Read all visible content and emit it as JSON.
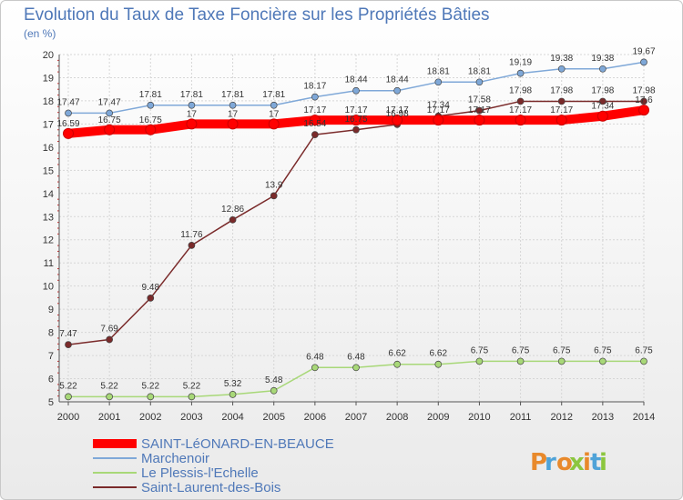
{
  "chart_data": {
    "type": "line",
    "title": "Evolution du Taux de Taxe Foncière sur les Propriétés Bâties",
    "subtitle": "(en %)",
    "xlabel": "",
    "ylabel": "",
    "x": [
      "2000",
      "2001",
      "2002",
      "2003",
      "2004",
      "2005",
      "2006",
      "2007",
      "2008",
      "2009",
      "2010",
      "2011",
      "2012",
      "2013",
      "2014"
    ],
    "ylim": [
      5,
      20
    ],
    "yticks": [
      5,
      6,
      7,
      8,
      9,
      10,
      11,
      12,
      13,
      14,
      15,
      16,
      17,
      18,
      19,
      20
    ],
    "grid": true,
    "legend_position": "bottom-left",
    "series": [
      {
        "name": "SAINT-LéONARD-EN-BEAUCE",
        "color": "#ff0000",
        "values": [
          16.59,
          16.75,
          16.75,
          17,
          17,
          17,
          17.17,
          17.17,
          17.17,
          17.17,
          17.17,
          17.17,
          17.17,
          17.34,
          17.6
        ],
        "labels": [
          "16.59",
          "16.75",
          "16.75",
          "17",
          "17",
          "17",
          "17.17",
          "17.17",
          "17.17",
          "17.17",
          "17.17",
          "17.17",
          "17.17",
          "17.34",
          "17.6"
        ]
      },
      {
        "name": "Marchenoir",
        "color": "#7fa8d8",
        "values": [
          17.47,
          17.47,
          17.81,
          17.81,
          17.81,
          17.81,
          18.17,
          18.44,
          18.44,
          18.81,
          18.81,
          19.19,
          19.38,
          19.38,
          19.67
        ],
        "labels": [
          "17.47",
          "17.47",
          "17.81",
          "17.81",
          "17.81",
          "17.81",
          "18.17",
          "18.44",
          "18.44",
          "18.81",
          "18.81",
          "19.19",
          "19.38",
          "19.38",
          "19.67"
        ]
      },
      {
        "name": "Le Plessis-l'Echelle",
        "color": "#a8d878",
        "values": [
          5.22,
          5.22,
          5.22,
          5.22,
          5.32,
          5.48,
          6.48,
          6.48,
          6.62,
          6.62,
          6.75,
          6.75,
          6.75,
          6.75,
          6.75
        ],
        "labels": [
          "5.22",
          "5.22",
          "5.22",
          "5.22",
          "5.32",
          "5.48",
          "6.48",
          "6.48",
          "6.62",
          "6.62",
          "6.75",
          "6.75",
          "6.75",
          "6.75",
          "6.75"
        ]
      },
      {
        "name": "Saint-Laurent-des-Bois",
        "color": "#7a2a2a",
        "values": [
          7.47,
          7.69,
          9.48,
          11.76,
          12.86,
          13.9,
          16.54,
          16.75,
          16.98,
          17.34,
          17.58,
          17.98,
          17.98,
          17.98,
          17.98
        ],
        "labels": [
          "7.47",
          "7.69",
          "9.48",
          "11.76",
          "12.86",
          "13.9",
          "16.54",
          "16.75",
          "16.98",
          "17.34",
          "17.58",
          "17.98",
          "17.98",
          "17.98",
          "17.98"
        ]
      }
    ]
  },
  "branding": {
    "logo_text": "Proxiti"
  }
}
